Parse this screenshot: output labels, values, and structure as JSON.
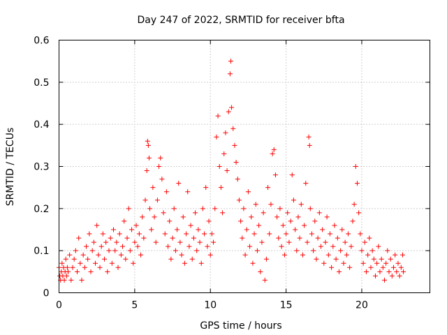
{
  "chart_data": {
    "type": "scatter",
    "title": "Day 247 of 2022, SRMTID for receiver bfta",
    "xlabel": "GPS time / hours",
    "ylabel": "SRMTID / TECUs",
    "xlim": [
      0,
      24.5
    ],
    "ylim": [
      0,
      0.6
    ],
    "x_ticks": [
      0,
      5,
      10,
      15,
      20
    ],
    "x_tick_labels": [
      "0",
      "5",
      "10",
      "15",
      "20"
    ],
    "y_ticks": [
      0,
      0.1,
      0.2,
      0.3,
      0.4,
      0.5,
      0.6
    ],
    "y_tick_labels": [
      "0",
      "0.1",
      "0.2",
      "0.3",
      "0.4",
      "0.5",
      "0.6"
    ],
    "grid": true,
    "marker": "+",
    "color": "#ff0000",
    "series": [
      {
        "name": "SRMTID",
        "points": [
          [
            0.0,
            0.06
          ],
          [
            0.05,
            0.04
          ],
          [
            0.1,
            0.03
          ],
          [
            0.15,
            0.05
          ],
          [
            0.2,
            0.07
          ],
          [
            0.25,
            0.04
          ],
          [
            0.3,
            0.06
          ],
          [
            0.35,
            0.03
          ],
          [
            0.4,
            0.05
          ],
          [
            0.45,
            0.08
          ],
          [
            0.5,
            0.04
          ],
          [
            0.55,
            0.06
          ],
          [
            0.6,
            0.05
          ],
          [
            0.7,
            0.09
          ],
          [
            0.8,
            0.03
          ],
          [
            0.9,
            0.06
          ],
          [
            1.0,
            0.08
          ],
          [
            1.1,
            0.1
          ],
          [
            1.2,
            0.05
          ],
          [
            1.3,
            0.13
          ],
          [
            1.4,
            0.07
          ],
          [
            1.5,
            0.03
          ],
          [
            1.6,
            0.09
          ],
          [
            1.7,
            0.06
          ],
          [
            1.8,
            0.11
          ],
          [
            1.9,
            0.08
          ],
          [
            2.0,
            0.14
          ],
          [
            2.1,
            0.05
          ],
          [
            2.2,
            0.1
          ],
          [
            2.3,
            0.12
          ],
          [
            2.4,
            0.07
          ],
          [
            2.5,
            0.16
          ],
          [
            2.6,
            0.09
          ],
          [
            2.7,
            0.06
          ],
          [
            2.8,
            0.11
          ],
          [
            2.9,
            0.14
          ],
          [
            3.0,
            0.08
          ],
          [
            3.1,
            0.12
          ],
          [
            3.2,
            0.05
          ],
          [
            3.3,
            0.1
          ],
          [
            3.4,
            0.13
          ],
          [
            3.5,
            0.07
          ],
          [
            3.6,
            0.15
          ],
          [
            3.7,
            0.1
          ],
          [
            3.8,
            0.12
          ],
          [
            3.9,
            0.06
          ],
          [
            4.0,
            0.14
          ],
          [
            4.1,
            0.09
          ],
          [
            4.2,
            0.11
          ],
          [
            4.3,
            0.17
          ],
          [
            4.4,
            0.08
          ],
          [
            4.5,
            0.13
          ],
          [
            4.6,
            0.2
          ],
          [
            4.7,
            0.1
          ],
          [
            4.8,
            0.15
          ],
          [
            4.9,
            0.07
          ],
          [
            5.0,
            0.12
          ],
          [
            5.1,
            0.16
          ],
          [
            5.2,
            0.11
          ],
          [
            5.3,
            0.14
          ],
          [
            5.4,
            0.09
          ],
          [
            5.5,
            0.18
          ],
          [
            5.6,
            0.13
          ],
          [
            5.7,
            0.22
          ],
          [
            5.8,
            0.29
          ],
          [
            5.85,
            0.36
          ],
          [
            5.9,
            0.35
          ],
          [
            5.95,
            0.32
          ],
          [
            6.0,
            0.2
          ],
          [
            6.1,
            0.15
          ],
          [
            6.2,
            0.25
          ],
          [
            6.3,
            0.18
          ],
          [
            6.4,
            0.12
          ],
          [
            6.5,
            0.22
          ],
          [
            6.6,
            0.3
          ],
          [
            6.7,
            0.32
          ],
          [
            6.8,
            0.27
          ],
          [
            6.9,
            0.19
          ],
          [
            7.0,
            0.14
          ],
          [
            7.1,
            0.24
          ],
          [
            7.2,
            0.11
          ],
          [
            7.3,
            0.17
          ],
          [
            7.4,
            0.08
          ],
          [
            7.5,
            0.13
          ],
          [
            7.6,
            0.2
          ],
          [
            7.7,
            0.1
          ],
          [
            7.8,
            0.15
          ],
          [
            7.9,
            0.26
          ],
          [
            8.0,
            0.12
          ],
          [
            8.1,
            0.09
          ],
          [
            8.2,
            0.18
          ],
          [
            8.3,
            0.07
          ],
          [
            8.4,
            0.14
          ],
          [
            8.5,
            0.24
          ],
          [
            8.6,
            0.11
          ],
          [
            8.7,
            0.16
          ],
          [
            8.8,
            0.08
          ],
          [
            8.9,
            0.13
          ],
          [
            9.0,
            0.19
          ],
          [
            9.1,
            0.1
          ],
          [
            9.2,
            0.15
          ],
          [
            9.3,
            0.12
          ],
          [
            9.4,
            0.07
          ],
          [
            9.5,
            0.2
          ],
          [
            9.6,
            0.14
          ],
          [
            9.7,
            0.25
          ],
          [
            9.8,
            0.11
          ],
          [
            9.9,
            0.17
          ],
          [
            10.0,
            0.09
          ],
          [
            10.1,
            0.14
          ],
          [
            10.2,
            0.12
          ],
          [
            10.3,
            0.2
          ],
          [
            10.4,
            0.37
          ],
          [
            10.5,
            0.42
          ],
          [
            10.6,
            0.3
          ],
          [
            10.7,
            0.25
          ],
          [
            10.8,
            0.19
          ],
          [
            10.9,
            0.33
          ],
          [
            11.0,
            0.38
          ],
          [
            11.1,
            0.29
          ],
          [
            11.2,
            0.43
          ],
          [
            11.3,
            0.52
          ],
          [
            11.35,
            0.55
          ],
          [
            11.4,
            0.44
          ],
          [
            11.5,
            0.39
          ],
          [
            11.6,
            0.35
          ],
          [
            11.7,
            0.31
          ],
          [
            11.8,
            0.27
          ],
          [
            11.9,
            0.22
          ],
          [
            12.0,
            0.17
          ],
          [
            12.1,
            0.13
          ],
          [
            12.2,
            0.2
          ],
          [
            12.3,
            0.09
          ],
          [
            12.4,
            0.15
          ],
          [
            12.5,
            0.24
          ],
          [
            12.6,
            0.11
          ],
          [
            12.7,
            0.18
          ],
          [
            12.8,
            0.07
          ],
          [
            12.9,
            0.14
          ],
          [
            13.0,
            0.21
          ],
          [
            13.1,
            0.1
          ],
          [
            13.2,
            0.16
          ],
          [
            13.3,
            0.05
          ],
          [
            13.4,
            0.12
          ],
          [
            13.5,
            0.19
          ],
          [
            13.6,
            0.03
          ],
          [
            13.7,
            0.08
          ],
          [
            13.8,
            0.25
          ],
          [
            13.9,
            0.14
          ],
          [
            14.0,
            0.21
          ],
          [
            14.1,
            0.33
          ],
          [
            14.2,
            0.34
          ],
          [
            14.3,
            0.28
          ],
          [
            14.4,
            0.18
          ],
          [
            14.5,
            0.13
          ],
          [
            14.6,
            0.2
          ],
          [
            14.7,
            0.11
          ],
          [
            14.8,
            0.16
          ],
          [
            14.9,
            0.09
          ],
          [
            15.0,
            0.14
          ],
          [
            15.1,
            0.19
          ],
          [
            15.2,
            0.12
          ],
          [
            15.3,
            0.17
          ],
          [
            15.4,
            0.28
          ],
          [
            15.5,
            0.22
          ],
          [
            15.6,
            0.15
          ],
          [
            15.7,
            0.1
          ],
          [
            15.8,
            0.18
          ],
          [
            15.9,
            0.13
          ],
          [
            16.0,
            0.21
          ],
          [
            16.1,
            0.09
          ],
          [
            16.2,
            0.16
          ],
          [
            16.3,
            0.26
          ],
          [
            16.4,
            0.12
          ],
          [
            16.5,
            0.37
          ],
          [
            16.55,
            0.35
          ],
          [
            16.6,
            0.2
          ],
          [
            16.7,
            0.14
          ],
          [
            16.8,
            0.1
          ],
          [
            16.9,
            0.17
          ],
          [
            17.0,
            0.08
          ],
          [
            17.1,
            0.13
          ],
          [
            17.2,
            0.19
          ],
          [
            17.3,
            0.11
          ],
          [
            17.4,
            0.15
          ],
          [
            17.5,
            0.07
          ],
          [
            17.6,
            0.12
          ],
          [
            17.7,
            0.18
          ],
          [
            17.8,
            0.09
          ],
          [
            17.9,
            0.14
          ],
          [
            18.0,
            0.06
          ],
          [
            18.1,
            0.11
          ],
          [
            18.2,
            0.16
          ],
          [
            18.3,
            0.08
          ],
          [
            18.4,
            0.13
          ],
          [
            18.5,
            0.05
          ],
          [
            18.6,
            0.1
          ],
          [
            18.7,
            0.15
          ],
          [
            18.8,
            0.07
          ],
          [
            18.9,
            0.12
          ],
          [
            19.0,
            0.09
          ],
          [
            19.1,
            0.14
          ],
          [
            19.2,
            0.06
          ],
          [
            19.3,
            0.11
          ],
          [
            19.4,
            0.17
          ],
          [
            19.5,
            0.21
          ],
          [
            19.6,
            0.3
          ],
          [
            19.7,
            0.26
          ],
          [
            19.8,
            0.19
          ],
          [
            19.9,
            0.14
          ],
          [
            20.0,
            0.1
          ],
          [
            20.1,
            0.07
          ],
          [
            20.2,
            0.12
          ],
          [
            20.3,
            0.05
          ],
          [
            20.4,
            0.09
          ],
          [
            20.5,
            0.13
          ],
          [
            20.6,
            0.06
          ],
          [
            20.7,
            0.1
          ],
          [
            20.8,
            0.08
          ],
          [
            20.9,
            0.04
          ],
          [
            21.0,
            0.07
          ],
          [
            21.1,
            0.11
          ],
          [
            21.2,
            0.05
          ],
          [
            21.3,
            0.08
          ],
          [
            21.4,
            0.06
          ],
          [
            21.5,
            0.03
          ],
          [
            21.6,
            0.07
          ],
          [
            21.7,
            0.1
          ],
          [
            21.8,
            0.05
          ],
          [
            21.9,
            0.08
          ],
          [
            22.0,
            0.04
          ],
          [
            22.1,
            0.06
          ],
          [
            22.2,
            0.09
          ],
          [
            22.3,
            0.05
          ],
          [
            22.4,
            0.07
          ],
          [
            22.5,
            0.04
          ],
          [
            22.6,
            0.06
          ],
          [
            22.7,
            0.09
          ],
          [
            22.75,
            0.05
          ]
        ]
      }
    ]
  }
}
